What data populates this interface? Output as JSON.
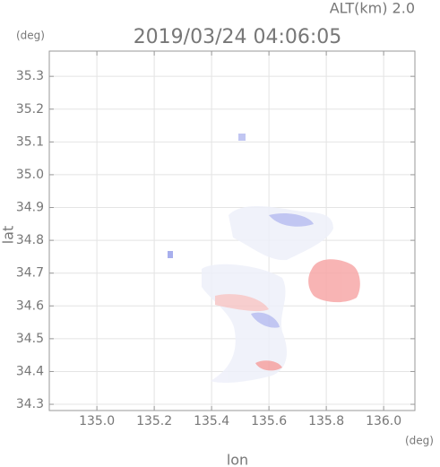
{
  "chart_data": {
    "type": "image",
    "title": "2019/03/24 04:06:05",
    "subtitle": "ALT(km) 2.0",
    "y_unit": "(deg)",
    "x_unit": "(deg)",
    "xlabel": "lon",
    "ylabel": "lat",
    "xlim": [
      134.834,
      136.109
    ],
    "ylim": [
      34.281,
      35.377
    ],
    "xticks": [
      {
        "value": 135.0,
        "label": "135.0"
      },
      135.2,
      135.4,
      135.6,
      135.8,
      {
        "value": 136.0,
        "label": "136.0"
      }
    ],
    "yticks": [
      34.3,
      34.4,
      34.5,
      34.6,
      34.7,
      34.8,
      34.9,
      {
        "value": 35.0,
        "label": "35.0"
      },
      35.1,
      35.2,
      35.3
    ],
    "grid": true
  }
}
